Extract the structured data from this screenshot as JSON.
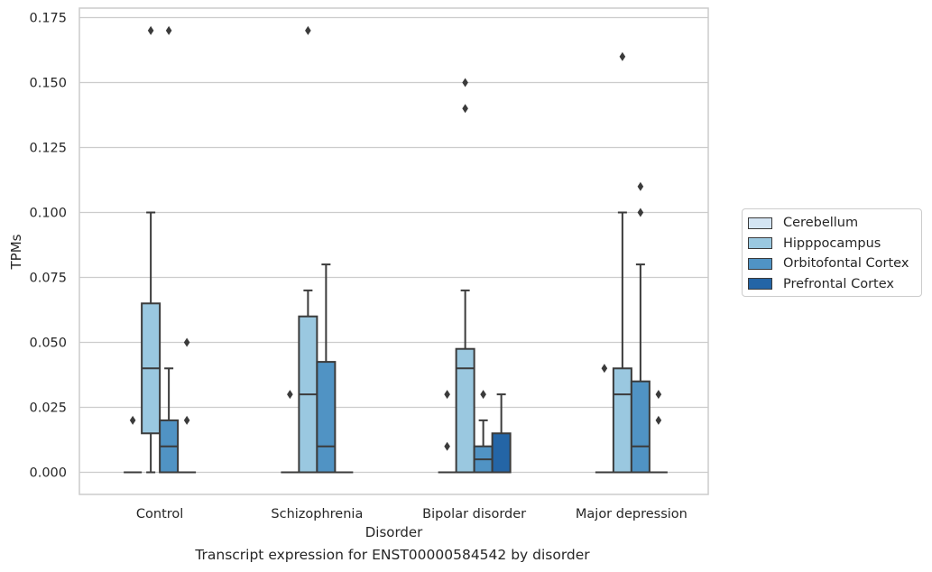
{
  "chart_data": {
    "type": "boxplot",
    "title": "Transcript expression for ENST00000584542 by disorder",
    "xlabel": "Disorder",
    "ylabel": "TPMs",
    "ylim": [
      -0.0085,
      0.1785
    ],
    "yticks": [
      "0.000",
      "0.025",
      "0.050",
      "0.075",
      "0.100",
      "0.125",
      "0.150",
      "0.175"
    ],
    "categories": [
      "Control",
      "Schizophrenia",
      "Bipolar disorder",
      "Major depression"
    ],
    "legend": {
      "placement": "right",
      "entries": [
        "Cerebellum",
        "Hipppocampus",
        "Orbitofontal Cortex",
        "Prefrontal Cortex"
      ]
    },
    "grid": true,
    "series": [
      {
        "name": "Cerebellum",
        "color": "#d3e4f3",
        "boxes": [
          {
            "category": "Control",
            "q1": 0,
            "median": 0,
            "q3": 0,
            "whisker_low": 0,
            "whisker_high": 0,
            "outliers": [
              0.02
            ]
          },
          {
            "category": "Schizophrenia",
            "q1": 0,
            "median": 0,
            "q3": 0,
            "whisker_low": 0,
            "whisker_high": 0,
            "outliers": [
              0.03
            ]
          },
          {
            "category": "Bipolar disorder",
            "q1": 0,
            "median": 0,
            "q3": 0,
            "whisker_low": 0,
            "whisker_high": 0,
            "outliers": [
              0.03,
              0.01
            ]
          },
          {
            "category": "Major depression",
            "q1": 0,
            "median": 0,
            "q3": 0,
            "whisker_low": 0,
            "whisker_high": 0,
            "outliers": [
              0.04
            ]
          }
        ]
      },
      {
        "name": "Hipppocampus",
        "color": "#9ac8e0",
        "boxes": [
          {
            "category": "Control",
            "q1": 0.015,
            "median": 0.04,
            "q3": 0.065,
            "whisker_low": 0,
            "whisker_high": 0.1,
            "outliers": [
              0.17
            ]
          },
          {
            "category": "Schizophrenia",
            "q1": 0,
            "median": 0.03,
            "q3": 0.06,
            "whisker_low": 0,
            "whisker_high": 0.07,
            "outliers": [
              0.17
            ]
          },
          {
            "category": "Bipolar disorder",
            "q1": 0,
            "median": 0.04,
            "q3": 0.0475,
            "whisker_low": 0,
            "whisker_high": 0.07,
            "outliers": [
              0.15,
              0.14
            ]
          },
          {
            "category": "Major depression",
            "q1": 0,
            "median": 0.03,
            "q3": 0.04,
            "whisker_low": 0,
            "whisker_high": 0.1,
            "outliers": [
              0.16
            ]
          }
        ]
      },
      {
        "name": "Orbitofontal Cortex",
        "color": "#5093c4",
        "boxes": [
          {
            "category": "Control",
            "q1": 0,
            "median": 0.01,
            "q3": 0.02,
            "whisker_low": 0,
            "whisker_high": 0.04,
            "outliers": [
              0.17
            ]
          },
          {
            "category": "Schizophrenia",
            "q1": 0,
            "median": 0.01,
            "q3": 0.0425,
            "whisker_low": 0,
            "whisker_high": 0.08,
            "outliers": []
          },
          {
            "category": "Bipolar disorder",
            "q1": 0,
            "median": 0.005,
            "q3": 0.01,
            "whisker_low": 0,
            "whisker_high": 0.02,
            "outliers": [
              0.03
            ]
          },
          {
            "category": "Major depression",
            "q1": 0,
            "median": 0.01,
            "q3": 0.035,
            "whisker_low": 0,
            "whisker_high": 0.08,
            "outliers": [
              0.11,
              0.1
            ]
          }
        ]
      },
      {
        "name": "Prefrontal Cortex",
        "color": "#2465a6",
        "boxes": [
          {
            "category": "Control",
            "q1": 0,
            "median": 0,
            "q3": 0,
            "whisker_low": 0,
            "whisker_high": 0,
            "outliers": [
              0.05,
              0.02
            ]
          },
          {
            "category": "Schizophrenia",
            "q1": 0,
            "median": 0,
            "q3": 0,
            "whisker_low": 0,
            "whisker_high": 0,
            "outliers": []
          },
          {
            "category": "Bipolar disorder",
            "q1": 0,
            "median": 0,
            "q3": 0.015,
            "whisker_low": 0,
            "whisker_high": 0.03,
            "outliers": []
          },
          {
            "category": "Major depression",
            "q1": 0,
            "median": 0,
            "q3": 0,
            "whisker_low": 0,
            "whisker_high": 0,
            "outliers": [
              0.03,
              0.02
            ]
          }
        ]
      }
    ]
  }
}
